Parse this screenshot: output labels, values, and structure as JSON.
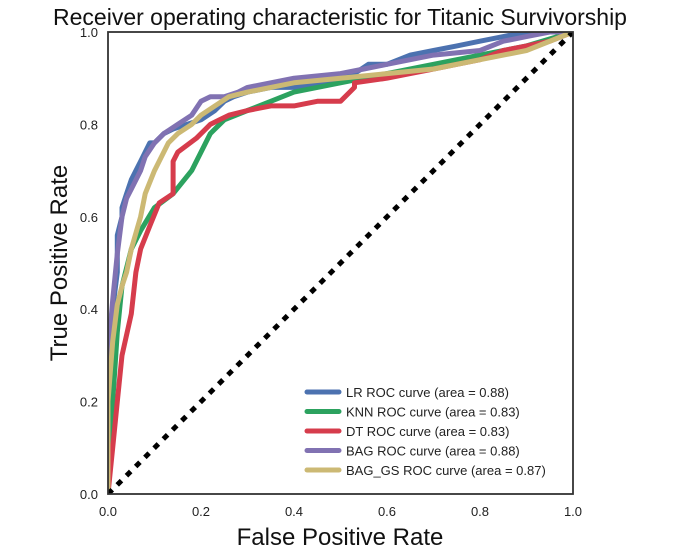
{
  "chart_data": {
    "type": "line",
    "title": "Receiver operating characteristic for Titanic Survivorship",
    "xlabel": "False Positive Rate",
    "ylabel": "True Positive Rate",
    "xlim": [
      0.0,
      1.0
    ],
    "ylim": [
      0.0,
      1.0
    ],
    "xticks": [
      "0.0",
      "0.2",
      "0.4",
      "0.6",
      "0.8",
      "1.0"
    ],
    "yticks": [
      "0.0",
      "0.2",
      "0.4",
      "0.6",
      "0.8",
      "1.0"
    ],
    "grid": false,
    "legend_position": "lower-right",
    "diagonal": {
      "x": [
        0,
        1
      ],
      "y": [
        0,
        1
      ],
      "style": "dotted",
      "color": "#000000"
    },
    "series": [
      {
        "name": "LR ROC curve (area = 0.88)",
        "color": "#4c72b0",
        "x": [
          0,
          0,
          0.01,
          0.01,
          0.02,
          0.02,
          0.03,
          0.03,
          0.04,
          0.05,
          0.06,
          0.07,
          0.08,
          0.09,
          0.1,
          0.12,
          0.14,
          0.17,
          0.2,
          0.23,
          0.25,
          0.27,
          0.3,
          0.35,
          0.4,
          0.45,
          0.5,
          0.53,
          0.56,
          0.6,
          0.65,
          0.7,
          0.75,
          0.8,
          0.85,
          0.9,
          0.95,
          1.0
        ],
        "y": [
          0,
          0.2,
          0.3,
          0.4,
          0.48,
          0.56,
          0.6,
          0.62,
          0.65,
          0.68,
          0.7,
          0.72,
          0.74,
          0.76,
          0.76,
          0.78,
          0.79,
          0.8,
          0.81,
          0.83,
          0.85,
          0.86,
          0.87,
          0.88,
          0.88,
          0.89,
          0.9,
          0.91,
          0.93,
          0.93,
          0.95,
          0.96,
          0.97,
          0.98,
          0.99,
          1.0,
          1.0,
          1.0
        ]
      },
      {
        "name": "KNN ROC curve (area = 0.83)",
        "color": "#2ca25f",
        "x": [
          0,
          0.01,
          0.02,
          0.03,
          0.05,
          0.07,
          0.1,
          0.14,
          0.18,
          0.22,
          0.25,
          0.3,
          0.35,
          0.4,
          0.5,
          0.6,
          0.7,
          0.8,
          0.9,
          1.0
        ],
        "y": [
          0,
          0.2,
          0.35,
          0.45,
          0.53,
          0.57,
          0.62,
          0.65,
          0.7,
          0.78,
          0.81,
          0.83,
          0.85,
          0.87,
          0.89,
          0.91,
          0.93,
          0.95,
          0.97,
          1.0
        ]
      },
      {
        "name": "DT ROC curve (area = 0.83)",
        "color": "#d63c4c",
        "x": [
          0,
          0.01,
          0.02,
          0.03,
          0.05,
          0.06,
          0.07,
          0.09,
          0.11,
          0.14,
          0.14,
          0.15,
          0.19,
          0.22,
          0.24,
          0.26,
          0.3,
          0.35,
          0.4,
          0.45,
          0.5,
          0.53,
          0.53,
          0.6,
          0.65,
          0.7,
          0.75,
          0.8,
          0.85,
          0.9,
          0.95,
          1.0
        ],
        "y": [
          0,
          0.1,
          0.2,
          0.3,
          0.39,
          0.48,
          0.53,
          0.58,
          0.63,
          0.65,
          0.72,
          0.74,
          0.77,
          0.8,
          0.81,
          0.82,
          0.83,
          0.84,
          0.84,
          0.85,
          0.85,
          0.88,
          0.89,
          0.9,
          0.91,
          0.92,
          0.93,
          0.94,
          0.96,
          0.97,
          0.98,
          1.0
        ]
      },
      {
        "name": "BAG ROC curve (area = 0.88)",
        "color": "#8172b2",
        "x": [
          0,
          0,
          0.01,
          0.02,
          0.03,
          0.04,
          0.05,
          0.07,
          0.08,
          0.1,
          0.12,
          0.15,
          0.18,
          0.2,
          0.22,
          0.25,
          0.28,
          0.3,
          0.35,
          0.4,
          0.5,
          0.55,
          0.6,
          0.7,
          0.8,
          0.85,
          0.9,
          0.95,
          1.0
        ],
        "y": [
          0,
          0.3,
          0.42,
          0.52,
          0.6,
          0.64,
          0.66,
          0.7,
          0.73,
          0.76,
          0.78,
          0.8,
          0.82,
          0.85,
          0.86,
          0.86,
          0.87,
          0.88,
          0.89,
          0.9,
          0.91,
          0.92,
          0.93,
          0.95,
          0.96,
          0.98,
          0.99,
          1.0,
          1.0
        ]
      },
      {
        "name": "BAG_GS ROC curve (area = 0.87)",
        "color": "#ccb974",
        "x": [
          0,
          0,
          0.01,
          0.02,
          0.03,
          0.04,
          0.05,
          0.07,
          0.08,
          0.1,
          0.13,
          0.15,
          0.18,
          0.2,
          0.23,
          0.26,
          0.3,
          0.35,
          0.4,
          0.5,
          0.6,
          0.7,
          0.8,
          0.9,
          1.0
        ],
        "y": [
          0,
          0.2,
          0.33,
          0.41,
          0.45,
          0.48,
          0.53,
          0.6,
          0.65,
          0.7,
          0.76,
          0.78,
          0.8,
          0.82,
          0.84,
          0.86,
          0.87,
          0.88,
          0.89,
          0.9,
          0.91,
          0.92,
          0.94,
          0.96,
          1.0
        ]
      }
    ]
  }
}
